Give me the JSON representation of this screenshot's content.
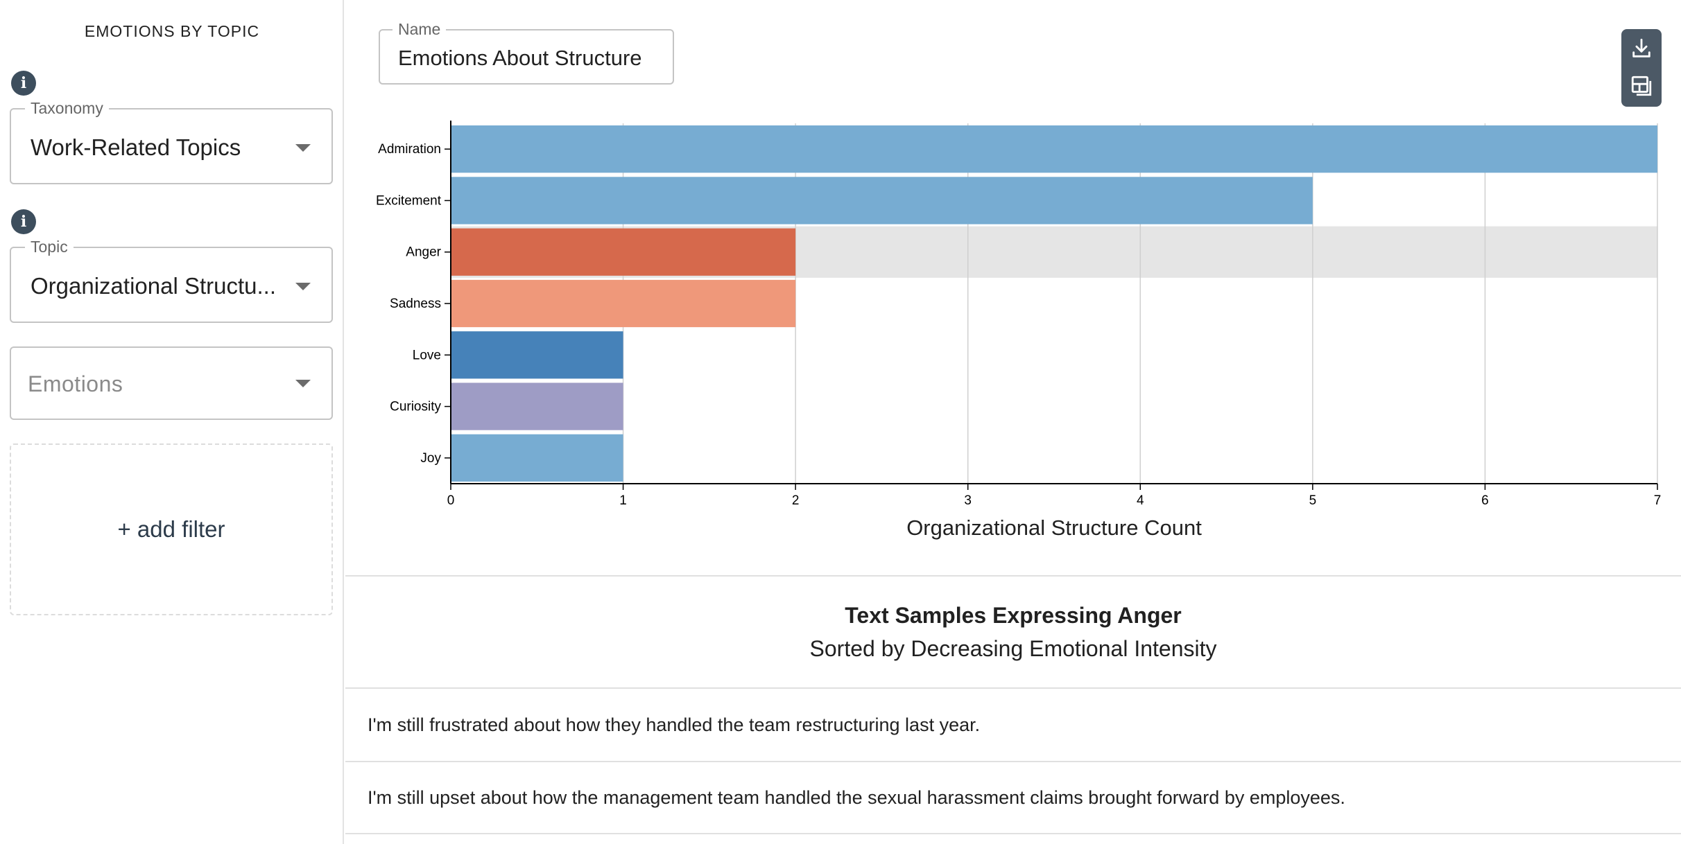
{
  "sidebar": {
    "title": "EMOTIONS BY TOPIC",
    "taxonomy": {
      "label": "Taxonomy",
      "value": "Work-Related Topics"
    },
    "topic": {
      "label": "Topic",
      "value": "Organizational Structu..."
    },
    "emotions": {
      "placeholder": "Emotions"
    },
    "add_filter": "+ add filter"
  },
  "main": {
    "name_field": {
      "label": "Name",
      "value": "Emotions About Structure"
    },
    "toolbar": {
      "icons": [
        "download-icon",
        "layout-icon"
      ]
    }
  },
  "chart_data": {
    "type": "bar",
    "orientation": "horizontal",
    "categories": [
      "Admiration",
      "Excitement",
      "Anger",
      "Sadness",
      "Love",
      "Curiosity",
      "Joy"
    ],
    "values": [
      7,
      5,
      2,
      2,
      1,
      1,
      1
    ],
    "colors": [
      "#77acd2",
      "#77acd2",
      "#d6694c",
      "#ef987a",
      "#4682b9",
      "#9e9cc5",
      "#77acd2"
    ],
    "highlighted_category": "Anger",
    "highlight_color": "#e5e5e5",
    "xlabel": "Organizational Structure Count",
    "xlim": [
      0,
      7
    ],
    "xticks": [
      "0",
      "1",
      "2",
      "3",
      "4",
      "5",
      "6",
      "7"
    ],
    "grid": true
  },
  "samples": {
    "title": "Text Samples Expressing Anger",
    "subtitle": "Sorted by Decreasing Emotional Intensity",
    "items": [
      "I'm still frustrated about how they handled the team restructuring last year.",
      "I'm still upset about how the management team handled the sexual harassment claims brought forward by employees."
    ]
  }
}
